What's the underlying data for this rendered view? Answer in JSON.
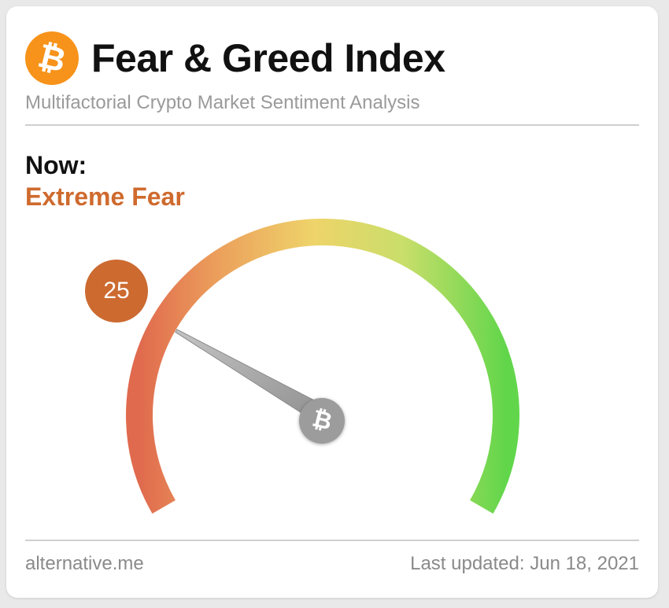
{
  "header": {
    "logo_icon": "bitcoin-icon",
    "logo_glyph": "₿",
    "title": "Fear & Greed Index",
    "subtitle": "Multifactorial Crypto Market Sentiment Analysis"
  },
  "now": {
    "label": "Now:",
    "status": "Extreme Fear",
    "status_color": "#cf6a2e"
  },
  "gauge": {
    "value": "25",
    "min": 0,
    "max": 100,
    "hub_glyph": "₿",
    "badge_color": "#cc6a30",
    "arc_colors": [
      "#e06a4e",
      "#eca15c",
      "#eed46a",
      "#c9de6a",
      "#62d64b"
    ]
  },
  "footer": {
    "source": "alternative.me",
    "last_updated": "Last updated: Jun 18, 2021"
  }
}
